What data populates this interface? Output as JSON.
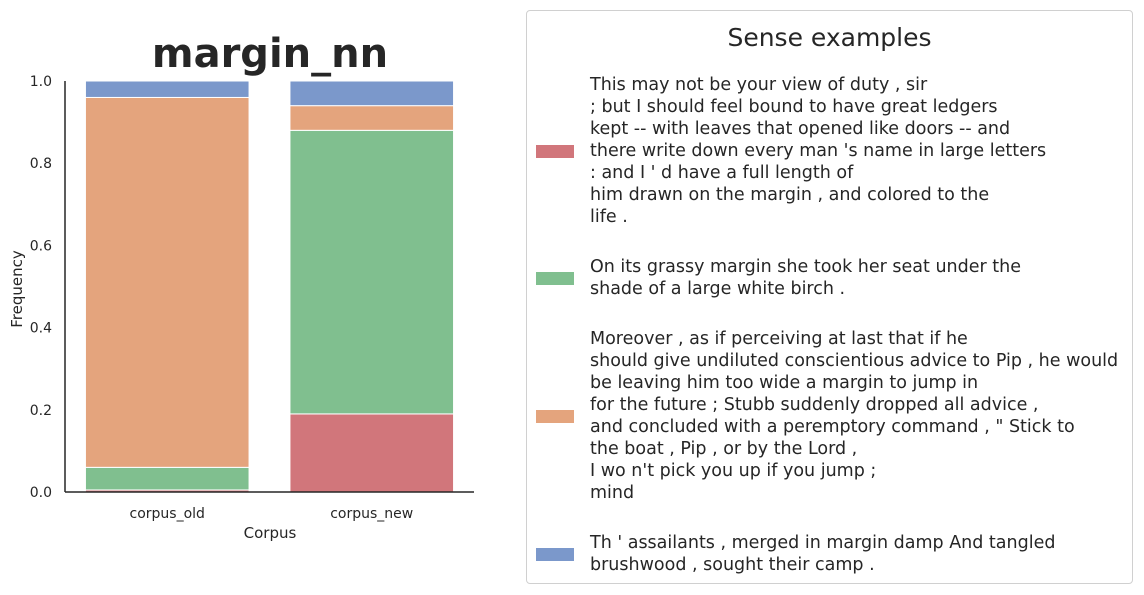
{
  "chart_data": {
    "type": "bar",
    "stacked": true,
    "title": "margin_nn",
    "xlabel": "Corpus",
    "ylabel": "Frequency",
    "ylim": [
      0,
      1.0
    ],
    "yticks": [
      "0.0",
      "0.2",
      "0.4",
      "0.6",
      "0.8",
      "1.0"
    ],
    "categories": [
      "corpus_old",
      "corpus_new"
    ],
    "series": [
      {
        "color": "#d1767b",
        "values": [
          0.005,
          0.19
        ]
      },
      {
        "color": "#80bf8f",
        "values": [
          0.055,
          0.69
        ]
      },
      {
        "color": "#e4a47d",
        "values": [
          0.9,
          0.06
        ]
      },
      {
        "color": "#7b98cb",
        "values": [
          0.04,
          0.06
        ]
      }
    ],
    "grid": false,
    "legend_position": "right"
  },
  "legend": {
    "title": "Sense examples",
    "entries": [
      {
        "color": "#d1767b",
        "lines": [
          "This may not be your view of duty , sir",
          "; but I should feel bound to have great ledgers",
          "kept -- with leaves that opened like doors -- and",
          "there write down every man 's name in large letters",
          ": and I ' d have a full length of",
          "him drawn on the margin , and colored to the",
          "life ."
        ]
      },
      {
        "color": "#80bf8f",
        "lines": [
          "On its grassy margin she took her seat under the",
          "shade of a large white birch ."
        ]
      },
      {
        "color": "#e4a47d",
        "lines": [
          "Moreover , as if perceiving at last that if he",
          "should give undiluted conscientious advice to Pip , he would",
          "be leaving him too wide a margin to jump in",
          "for the future ; Stubb suddenly dropped all advice ,",
          "and concluded with a peremptory command , \" Stick to",
          "the boat , Pip , or by the Lord ,",
          "I wo n't pick you up if you jump ;",
          "mind"
        ]
      },
      {
        "color": "#7b98cb",
        "lines": [
          "Th ' assailants , merged in margin damp And tangled",
          "brushwood , sought their camp ."
        ]
      }
    ]
  }
}
